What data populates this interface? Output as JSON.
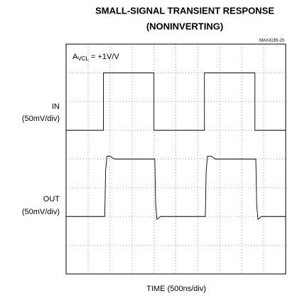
{
  "chart_data": {
    "type": "line",
    "title": [
      "SMALL-SIGNAL TRANSIENT RESPONSE",
      "(NONINVERTING)"
    ],
    "figure_id": "MAX4165-20",
    "annotation": {
      "main": "A",
      "sub": "VCL",
      "rest": " = +1V/V"
    },
    "xlabel": "TIME (500ns/div)",
    "channel_scales": [
      "(50mV/div)",
      "(50mV/div)"
    ],
    "xlim": [
      0,
      5000
    ],
    "ylim": [
      -200,
      200
    ],
    "xticks": [
      0,
      500,
      1000,
      1500,
      2000,
      2500,
      3000,
      3500,
      4000,
      4500,
      5000
    ],
    "yticks": [
      -200,
      -150,
      -100,
      -50,
      0,
      50,
      100,
      150,
      200
    ],
    "grid": true,
    "series": [
      {
        "name": "IN",
        "color": "#000000",
        "x": [
          0,
          850,
          850,
          2000,
          2000,
          3150,
          3150,
          4300,
          4300,
          5000
        ],
        "values": [
          50,
          50,
          150,
          150,
          50,
          50,
          150,
          150,
          50,
          50
        ]
      },
      {
        "name": "OUT",
        "color": "#000000",
        "x": [
          0,
          880,
          900,
          930,
          1000,
          1100,
          2020,
          2040,
          2070,
          2150,
          2250,
          3170,
          3190,
          3220,
          3300,
          3400,
          4320,
          4340,
          4370,
          4450,
          4550,
          5000
        ],
        "values": [
          -100,
          -100,
          -20,
          5,
          5,
          0,
          0,
          -80,
          -105,
          -100,
          -100,
          -100,
          -20,
          5,
          5,
          0,
          0,
          -80,
          -105,
          -100,
          -100,
          -100
        ]
      }
    ]
  }
}
